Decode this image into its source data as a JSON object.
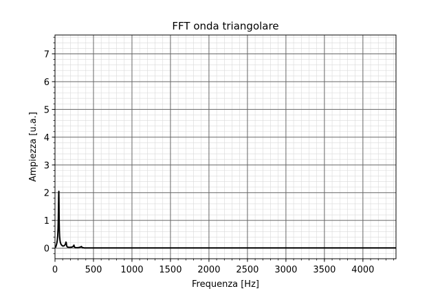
{
  "chart_data": {
    "type": "line",
    "title": "FFT onda triangolare",
    "xlabel": "Frequenza [Hz]",
    "ylabel": "Ampiezza [u.a.]",
    "xlim": [
      0,
      4430
    ],
    "ylim": [
      -0.38,
      7.68
    ],
    "xticks": [
      0,
      500,
      1000,
      1500,
      2000,
      2500,
      3000,
      3500,
      4000
    ],
    "yticks": [
      0,
      1,
      2,
      3,
      4,
      5,
      6,
      7
    ],
    "xminor_step": 100,
    "yminor_step": 0.2,
    "grid": "major and minor",
    "colors": {
      "line": "#000000",
      "major_grid": "#666666",
      "minor_grid": "#d9d9d9"
    },
    "series": [
      {
        "x": [
          5,
          10,
          15,
          20,
          25,
          30,
          35,
          40,
          43,
          46,
          48,
          50,
          52,
          54,
          57,
          60,
          65,
          70,
          80,
          90,
          100,
          110,
          120,
          130,
          138,
          142,
          146,
          150,
          154,
          158,
          165,
          180,
          200,
          220,
          235,
          242,
          246,
          250,
          254,
          258,
          266,
          280,
          300,
          320,
          338,
          344,
          348,
          352,
          356,
          365,
          380,
          420,
          500,
          600,
          800,
          1000,
          1500,
          2000,
          2500,
          3000,
          3500,
          4000,
          4430
        ],
        "y": [
          0.02,
          0.05,
          0.09,
          0.14,
          0.2,
          0.29,
          0.43,
          0.72,
          1.05,
          1.55,
          1.95,
          2.05,
          1.6,
          1.0,
          0.62,
          0.42,
          0.28,
          0.2,
          0.13,
          0.1,
          0.08,
          0.08,
          0.09,
          0.12,
          0.17,
          0.22,
          0.2,
          0.12,
          0.07,
          0.05,
          0.04,
          0.03,
          0.03,
          0.04,
          0.06,
          0.09,
          0.11,
          0.07,
          0.04,
          0.03,
          0.02,
          0.02,
          0.02,
          0.03,
          0.05,
          0.06,
          0.04,
          0.03,
          0.02,
          0.02,
          0.01,
          0.01,
          0.01,
          0.01,
          0.01,
          0.01,
          0.01,
          0.01,
          0.01,
          0.01,
          0.01,
          0.01,
          0.01
        ]
      }
    ]
  }
}
